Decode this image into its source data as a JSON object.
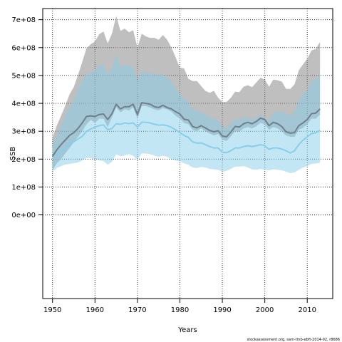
{
  "chart_data": {
    "type": "area",
    "xlabel": "Years",
    "ylabel": "SSB",
    "xlim": [
      1947.7,
      2016.0
    ],
    "ylim": [
      -300000000.0,
      740000000.0
    ],
    "x_ticks": [
      1950,
      1960,
      1970,
      1980,
      1990,
      2000,
      2010
    ],
    "y_ticks": [
      0,
      100000000.0,
      200000000.0,
      300000000.0,
      400000000.0,
      500000000.0,
      600000000.0,
      700000000.0
    ],
    "y_tick_labels": [
      "0e+00",
      "1e+08",
      "2e+08",
      "3e+08",
      "4e+08",
      "5e+08",
      "6e+08",
      "7e+08"
    ],
    "grid": true,
    "years": [
      1950,
      1951,
      1952,
      1953,
      1954,
      1955,
      1956,
      1957,
      1958,
      1959,
      1960,
      1961,
      1962,
      1963,
      1964,
      1965,
      1966,
      1967,
      1968,
      1969,
      1970,
      1971,
      1972,
      1973,
      1974,
      1975,
      1976,
      1977,
      1978,
      1979,
      1980,
      1981,
      1982,
      1983,
      1984,
      1985,
      1986,
      1987,
      1988,
      1989,
      1990,
      1991,
      1992,
      1993,
      1994,
      1995,
      1996,
      1997,
      1998,
      1999,
      2000,
      2001,
      2002,
      2003,
      2004,
      2005,
      2006,
      2007,
      2008,
      2009,
      2010,
      2011,
      2012,
      2013
    ],
    "series": [
      {
        "color": "#6f7f8c",
        "values": [
          210000000.0,
          233000000.0,
          252000000.0,
          268000000.0,
          285000000.0,
          295000000.0,
          310000000.0,
          330000000.0,
          353000000.0,
          355000000.0,
          353000000.0,
          360000000.0,
          362000000.0,
          342000000.0,
          363000000.0,
          397000000.0,
          380000000.0,
          388000000.0,
          388000000.0,
          397000000.0,
          360000000.0,
          402000000.0,
          400000000.0,
          397000000.0,
          388000000.0,
          385000000.0,
          393000000.0,
          385000000.0,
          380000000.0,
          370000000.0,
          362000000.0,
          343000000.0,
          340000000.0,
          317000000.0,
          312000000.0,
          320000000.0,
          312000000.0,
          303000000.0,
          298000000.0,
          302000000.0,
          283000000.0,
          280000000.0,
          297000000.0,
          317000000.0,
          315000000.0,
          327000000.0,
          332000000.0,
          327000000.0,
          335000000.0,
          347000000.0,
          342000000.0,
          320000000.0,
          332000000.0,
          327000000.0,
          317000000.0,
          298000000.0,
          293000000.0,
          295000000.0,
          320000000.0,
          330000000.0,
          342000000.0,
          363000000.0,
          365000000.0,
          380000000.0
        ],
        "lower": [
          160000000.0,
          185000000.0,
          200000000.0,
          220000000.0,
          240000000.0,
          260000000.0,
          280000000.0,
          300000000.0,
          325000000.0,
          340000000.0,
          330000000.0,
          345000000.0,
          345000000.0,
          315000000.0,
          350000000.0,
          385000000.0,
          368000000.0,
          378000000.0,
          375000000.0,
          385000000.0,
          345000000.0,
          390000000.0,
          390000000.0,
          385000000.0,
          378000000.0,
          375000000.0,
          383000000.0,
          378000000.0,
          370000000.0,
          355000000.0,
          345000000.0,
          330000000.0,
          325000000.0,
          305000000.0,
          300000000.0,
          310000000.0,
          300000000.0,
          292000000.0,
          285000000.0,
          290000000.0,
          270000000.0,
          265000000.0,
          282000000.0,
          300000000.0,
          298000000.0,
          310000000.0,
          315000000.0,
          310000000.0,
          318000000.0,
          330000000.0,
          325000000.0,
          305000000.0,
          315000000.0,
          310000000.0,
          300000000.0,
          285000000.0,
          280000000.0,
          280000000.0,
          305000000.0,
          312000000.0,
          325000000.0,
          345000000.0,
          345000000.0,
          360000000.0
        ],
        "upper": [
          278000000.0,
          320000000.0,
          355000000.0,
          392000000.0,
          432000000.0,
          458000000.0,
          502000000.0,
          548000000.0,
          598000000.0,
          612000000.0,
          622000000.0,
          648000000.0,
          658000000.0,
          615000000.0,
          650000000.0,
          713000000.0,
          660000000.0,
          668000000.0,
          655000000.0,
          662000000.0,
          600000000.0,
          650000000.0,
          640000000.0,
          635000000.0,
          635000000.0,
          628000000.0,
          645000000.0,
          628000000.0,
          600000000.0,
          565000000.0,
          528000000.0,
          525000000.0,
          488000000.0,
          480000000.0,
          480000000.0,
          462000000.0,
          445000000.0,
          438000000.0,
          445000000.0,
          420000000.0,
          405000000.0,
          405000000.0,
          420000000.0,
          442000000.0,
          440000000.0,
          460000000.0,
          465000000.0,
          458000000.0,
          475000000.0,
          492000000.0,
          485000000.0,
          460000000.0,
          485000000.0,
          483000000.0,
          478000000.0,
          452000000.0,
          452000000.0,
          468000000.0,
          518000000.0,
          540000000.0,
          560000000.0,
          590000000.0,
          595000000.0,
          620000000.0
        ]
      },
      {
        "color": "#87ceeb",
        "values": [
          202000000.0,
          215000000.0,
          228000000.0,
          240000000.0,
          252000000.0,
          262000000.0,
          272000000.0,
          282000000.0,
          300000000.0,
          308000000.0,
          315000000.0,
          320000000.0,
          323000000.0,
          305000000.0,
          310000000.0,
          327000000.0,
          325000000.0,
          330000000.0,
          327000000.0,
          330000000.0,
          315000000.0,
          332000000.0,
          332000000.0,
          330000000.0,
          325000000.0,
          322000000.0,
          323000000.0,
          320000000.0,
          314000000.0,
          305000000.0,
          295000000.0,
          285000000.0,
          278000000.0,
          262000000.0,
          257000000.0,
          258000000.0,
          252000000.0,
          245000000.0,
          240000000.0,
          240000000.0,
          225000000.0,
          223000000.0,
          230000000.0,
          240000000.0,
          240000000.0,
          245000000.0,
          248000000.0,
          245000000.0,
          248000000.0,
          252000000.0,
          248000000.0,
          235000000.0,
          240000000.0,
          240000000.0,
          236000000.0,
          230000000.0,
          222000000.0,
          230000000.0,
          252000000.0,
          268000000.0,
          280000000.0,
          292000000.0,
          294000000.0,
          303000000.0
        ],
        "lower": [
          155000000.0,
          168000000.0,
          175000000.0,
          180000000.0,
          183000000.0,
          185000000.0,
          188000000.0,
          195000000.0,
          205000000.0,
          203000000.0,
          200000000.0,
          196000000.0,
          193000000.0,
          180000000.0,
          190000000.0,
          218000000.0,
          210000000.0,
          213000000.0,
          218000000.0,
          212000000.0,
          198000000.0,
          220000000.0,
          220000000.0,
          218000000.0,
          213000000.0,
          208000000.0,
          213000000.0,
          208000000.0,
          200000000.0,
          195000000.0,
          192000000.0,
          185000000.0,
          180000000.0,
          170000000.0,
          168000000.0,
          172000000.0,
          170000000.0,
          165000000.0,
          163000000.0,
          162000000.0,
          155000000.0,
          158000000.0,
          165000000.0,
          173000000.0,
          173000000.0,
          175000000.0,
          170000000.0,
          163000000.0,
          162000000.0,
          165000000.0,
          162000000.0,
          160000000.0,
          163000000.0,
          162000000.0,
          160000000.0,
          155000000.0,
          150000000.0,
          152000000.0,
          162000000.0,
          170000000.0,
          175000000.0,
          183000000.0,
          184000000.0,
          187000000.0
        ],
        "upper": [
          255000000.0,
          285000000.0,
          320000000.0,
          355000000.0,
          385000000.0,
          412000000.0,
          448000000.0,
          482000000.0,
          505000000.0,
          512000000.0,
          520000000.0,
          535000000.0,
          540000000.0,
          505000000.0,
          528000000.0,
          577000000.0,
          532000000.0,
          538000000.0,
          532000000.0,
          532000000.0,
          482000000.0,
          518000000.0,
          512000000.0,
          508000000.0,
          505000000.0,
          502000000.0,
          507000000.0,
          490000000.0,
          475000000.0,
          455000000.0,
          435000000.0,
          415000000.0,
          405000000.0,
          380000000.0,
          372000000.0,
          370000000.0,
          360000000.0,
          350000000.0,
          345000000.0,
          340000000.0,
          315000000.0,
          312000000.0,
          325000000.0,
          345000000.0,
          340000000.0,
          350000000.0,
          350000000.0,
          342000000.0,
          348000000.0,
          360000000.0,
          350000000.0,
          335000000.0,
          368000000.0,
          370000000.0,
          370000000.0,
          360000000.0,
          358000000.0,
          370000000.0,
          410000000.0,
          435000000.0,
          445000000.0,
          480000000.0,
          485000000.0,
          498000000.0
        ]
      }
    ]
  },
  "footnote": "stockassessment.org, sam-tmb-ebft-2014-02, r8686"
}
